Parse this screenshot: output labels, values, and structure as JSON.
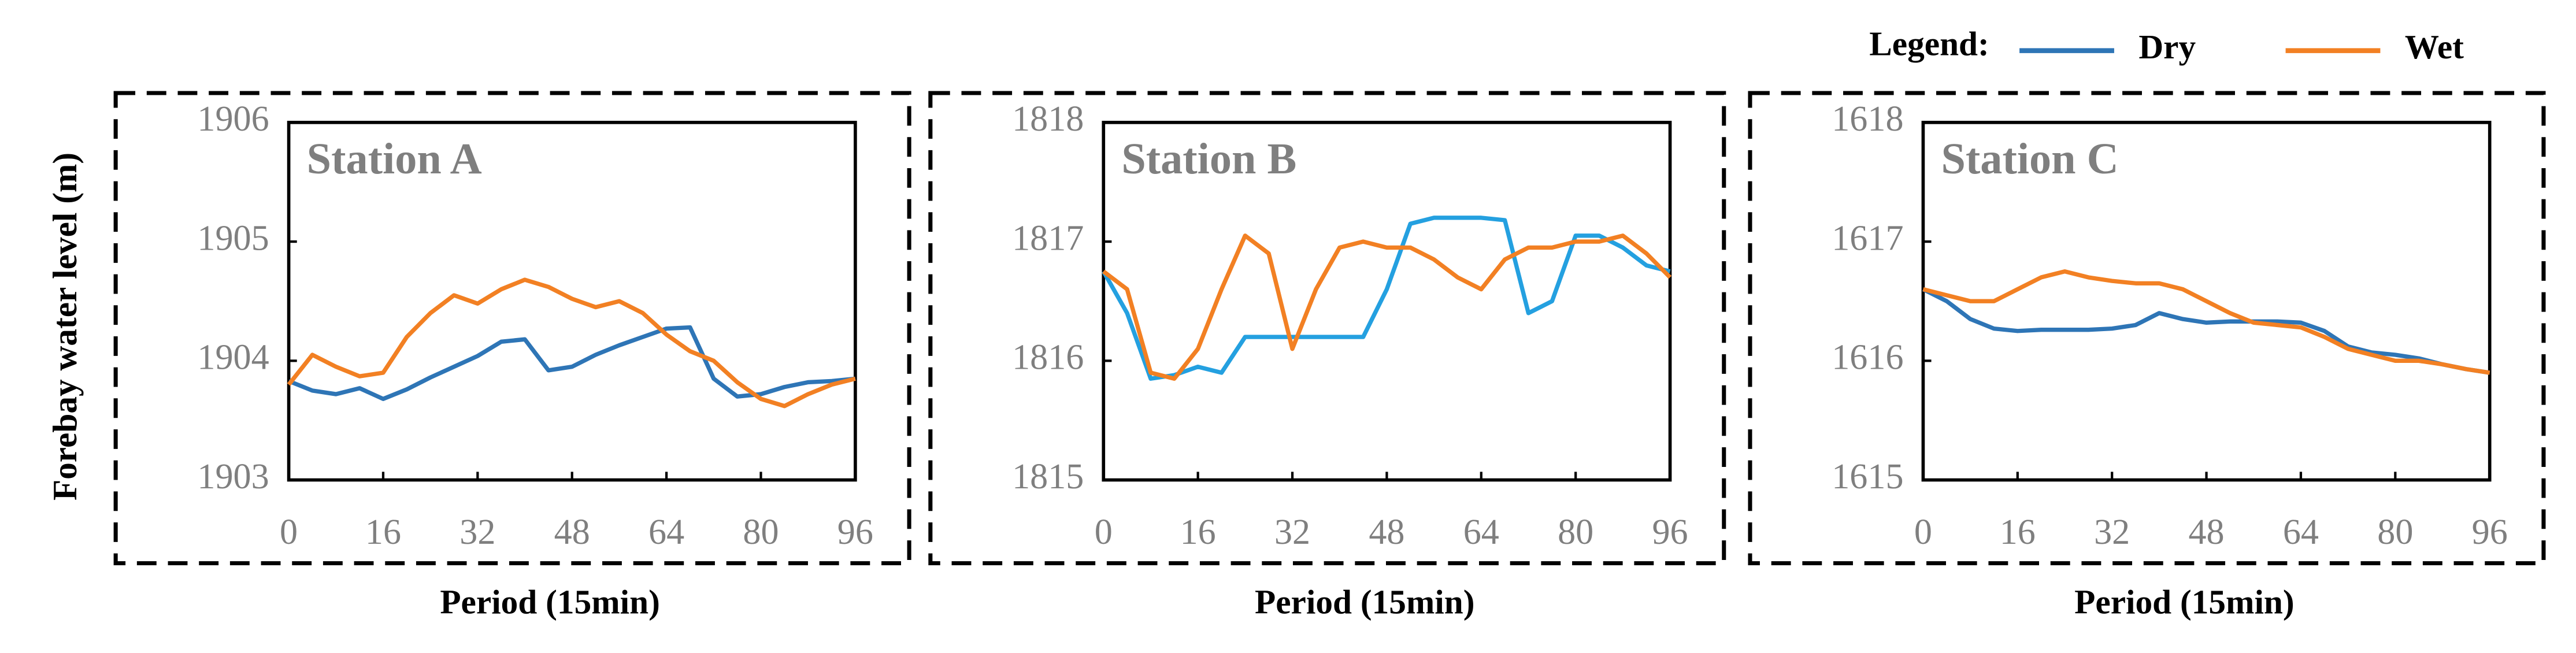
{
  "ylabel": "Forebay water level (m)",
  "legend": {
    "title": "Legend:",
    "entries": [
      {
        "name": "Dry",
        "color": "#2e75b6"
      },
      {
        "name": "Wet",
        "color": "#f28023"
      }
    ]
  },
  "chart_data": [
    {
      "type": "line",
      "title": "Station A",
      "xlabel": "Period (15min)",
      "x": [
        0,
        4,
        8,
        12,
        16,
        20,
        24,
        28,
        32,
        36,
        40,
        44,
        48,
        52,
        56,
        60,
        64,
        68,
        72,
        76,
        80,
        84,
        88,
        92,
        96
      ],
      "xlim": [
        0,
        96
      ],
      "xticks": [
        0,
        16,
        32,
        48,
        64,
        80,
        96
      ],
      "ylim": [
        1903,
        1906
      ],
      "yticks": [
        1903,
        1904,
        1905,
        1906
      ],
      "series": [
        {
          "color": "#2e75b6",
          "values": [
            1903.83,
            1903.75,
            1903.72,
            1903.77,
            1903.68,
            1903.76,
            1903.86,
            1903.95,
            1904.04,
            1904.16,
            1904.18,
            1903.92,
            1903.95,
            1904.05,
            1904.13,
            1904.2,
            1904.27,
            1904.28,
            1903.85,
            1903.7,
            1903.72,
            1903.78,
            1903.82,
            1903.83,
            1903.85
          ]
        },
        {
          "color": "#f28023",
          "values": [
            1903.8,
            1904.05,
            1903.95,
            1903.87,
            1903.9,
            1904.2,
            1904.4,
            1904.55,
            1904.48,
            1904.6,
            1904.68,
            1904.62,
            1904.52,
            1904.45,
            1904.5,
            1904.4,
            1904.22,
            1904.08,
            1904.0,
            1903.82,
            1903.68,
            1903.62,
            1903.72,
            1903.8,
            1903.85
          ]
        }
      ]
    },
    {
      "type": "line",
      "title": "Station B",
      "xlabel": "Period (15min)",
      "x": [
        0,
        4,
        8,
        12,
        16,
        20,
        24,
        28,
        32,
        36,
        40,
        44,
        48,
        52,
        56,
        60,
        64,
        68,
        72,
        76,
        80,
        84,
        88,
        92,
        96
      ],
      "xlim": [
        0,
        96
      ],
      "xticks": [
        0,
        16,
        32,
        48,
        64,
        80,
        96
      ],
      "ylim": [
        1815,
        1818
      ],
      "yticks": [
        1815,
        1816,
        1817,
        1818
      ],
      "series": [
        {
          "color": "#24a0e0",
          "values": [
            1816.75,
            1816.4,
            1815.85,
            1815.88,
            1815.95,
            1815.9,
            1816.2,
            1816.2,
            1816.2,
            1816.2,
            1816.2,
            1816.2,
            1816.6,
            1817.15,
            1817.2,
            1817.2,
            1817.2,
            1817.18,
            1816.4,
            1816.5,
            1817.05,
            1817.05,
            1816.95,
            1816.8,
            1816.75
          ]
        },
        {
          "color": "#f28023",
          "values": [
            1816.75,
            1816.6,
            1815.9,
            1815.85,
            1816.1,
            1816.6,
            1817.05,
            1816.9,
            1816.1,
            1816.6,
            1816.95,
            1817.0,
            1816.95,
            1816.95,
            1816.85,
            1816.7,
            1816.6,
            1816.85,
            1816.95,
            1816.95,
            1817.0,
            1817.0,
            1817.05,
            1816.9,
            1816.7
          ]
        }
      ]
    },
    {
      "type": "line",
      "title": "Station C",
      "xlabel": "Period (15min)",
      "x": [
        0,
        4,
        8,
        12,
        16,
        20,
        24,
        28,
        32,
        36,
        40,
        44,
        48,
        52,
        56,
        60,
        64,
        68,
        72,
        76,
        80,
        84,
        88,
        92,
        96
      ],
      "xlim": [
        0,
        96
      ],
      "xticks": [
        0,
        16,
        32,
        48,
        64,
        80,
        96
      ],
      "ylim": [
        1615,
        1618
      ],
      "yticks": [
        1615,
        1616,
        1617,
        1618
      ],
      "series": [
        {
          "color": "#2e75b6",
          "values": [
            1616.6,
            1616.5,
            1616.35,
            1616.27,
            1616.25,
            1616.26,
            1616.26,
            1616.26,
            1616.27,
            1616.3,
            1616.4,
            1616.35,
            1616.32,
            1616.33,
            1616.33,
            1616.33,
            1616.32,
            1616.25,
            1616.12,
            1616.07,
            1616.05,
            1616.02,
            1615.97,
            1615.93,
            1615.9
          ]
        },
        {
          "color": "#f28023",
          "values": [
            1616.6,
            1616.55,
            1616.5,
            1616.5,
            1616.6,
            1616.7,
            1616.75,
            1616.7,
            1616.67,
            1616.65,
            1616.65,
            1616.6,
            1616.5,
            1616.4,
            1616.32,
            1616.3,
            1616.28,
            1616.2,
            1616.1,
            1616.05,
            1616.0,
            1616.0,
            1615.97,
            1615.93,
            1615.9
          ]
        }
      ]
    }
  ]
}
